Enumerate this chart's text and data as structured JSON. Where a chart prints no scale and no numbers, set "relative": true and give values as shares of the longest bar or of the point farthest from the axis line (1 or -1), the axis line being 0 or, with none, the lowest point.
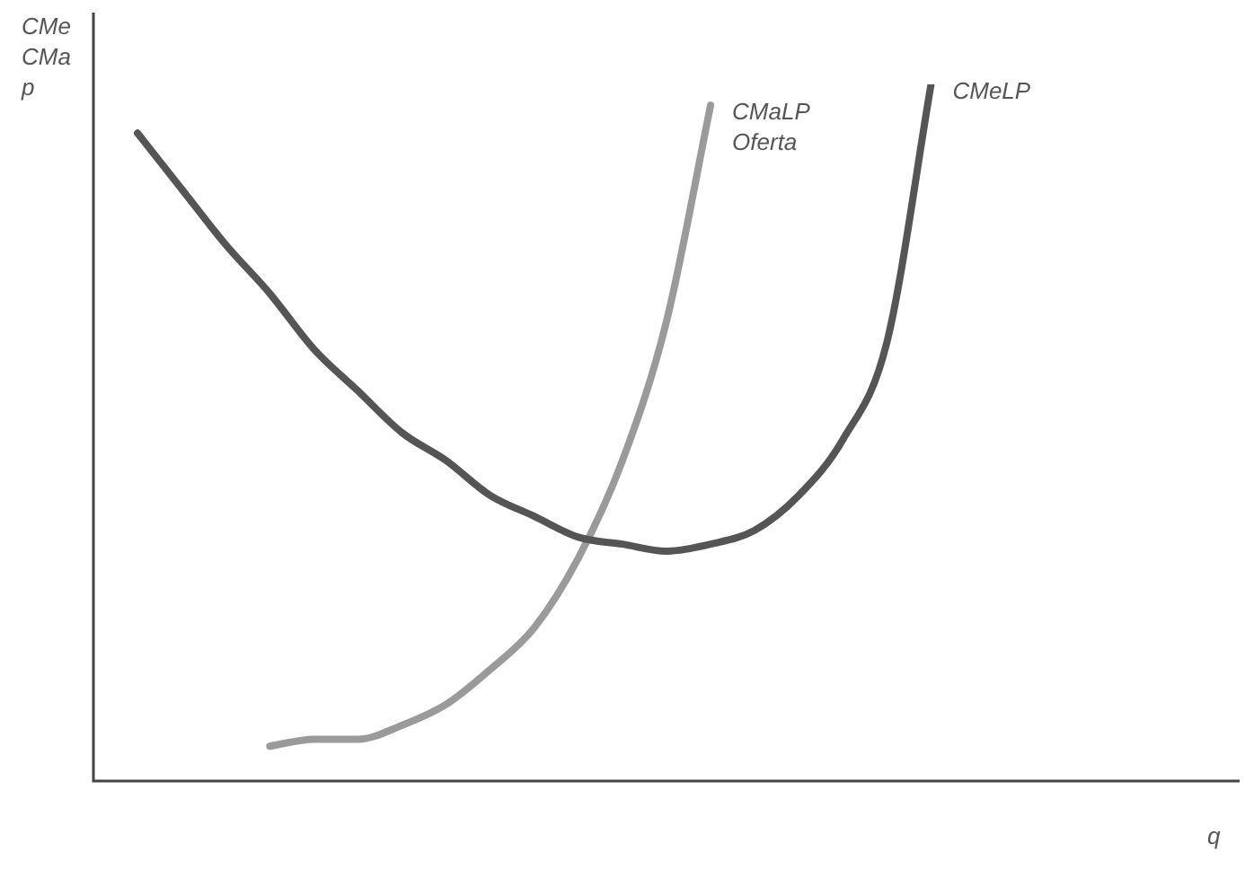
{
  "chart_data": {
    "type": "line",
    "relative": true,
    "ylabel": "CMe CMa p",
    "xlabel": "q",
    "legend": false,
    "marker": "none",
    "line_style": "solid",
    "categories": [
      null,
      null,
      null,
      null,
      null,
      null,
      null,
      null,
      null,
      null,
      null,
      null,
      null,
      null,
      null,
      null,
      null,
      null,
      null,
      null,
      null,
      null,
      null,
      null,
      null,
      null,
      null
    ],
    "series": [
      {
        "name": "CMeLP",
        "color": "#555555",
        "values": [
          null,
          0.93,
          0.85,
          0.77,
          0.7,
          0.62,
          0.56,
          0.5,
          0.46,
          0.41,
          0.38,
          0.35,
          0.34,
          0.33,
          0.34,
          0.36,
          0.41,
          0.49,
          0.63,
          1,
          null,
          null,
          null,
          null,
          null,
          null,
          null
        ]
      },
      {
        "name": "CMaLP Oferta",
        "color": "#9a9a9a",
        "values": [
          null,
          null,
          null,
          null,
          0.05,
          0.06,
          0.06,
          0.08,
          0.11,
          0.16,
          0.22,
          0.32,
          0.46,
          0.66,
          0.97,
          null,
          null,
          null,
          null,
          null,
          null,
          null,
          null,
          null,
          null,
          null,
          null
        ]
      }
    ]
  }
}
